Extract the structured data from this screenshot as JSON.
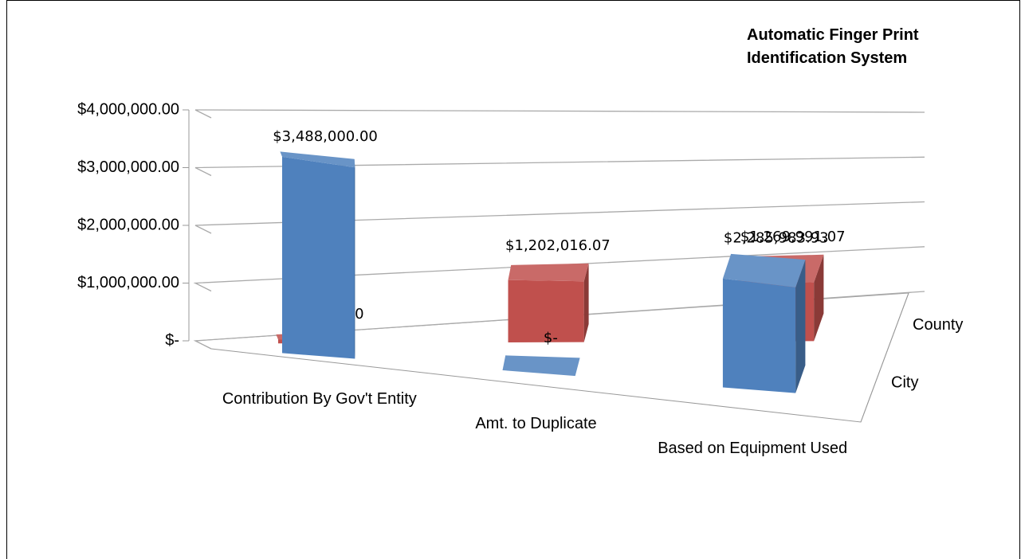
{
  "chart_data": {
    "type": "bar3d",
    "title": "Automatic Finger Print Identification System",
    "categories": [
      "Contribution By Gov't Entity",
      "Amt. to Duplicate",
      "Based on Equipment Used"
    ],
    "series": [
      {
        "name": "City",
        "color": "#4f81bd",
        "values": [
          3488000,
          0,
          2285983.93
        ],
        "value_labels": [
          "$3,488,000.00",
          "$-",
          "$2,285,983.93"
        ]
      },
      {
        "name": "County",
        "color": "#c0504d",
        "values": [
          67975,
          1202016.07,
          1269991.07
        ],
        "value_labels": [
          "$67,975.00",
          "$1,202,016.07",
          "$1,269,991.07"
        ]
      }
    ],
    "ylim": [
      0,
      4000000
    ],
    "yticks": [
      {
        "value": 0,
        "label": "$-"
      },
      {
        "value": 1000000,
        "label": "$1,000,000.00"
      },
      {
        "value": 2000000,
        "label": "$2,000,000.00"
      },
      {
        "value": 3000000,
        "label": "$3,000,000.00"
      },
      {
        "value": 4000000,
        "label": "$4,000,000.00"
      }
    ],
    "grid": true
  }
}
